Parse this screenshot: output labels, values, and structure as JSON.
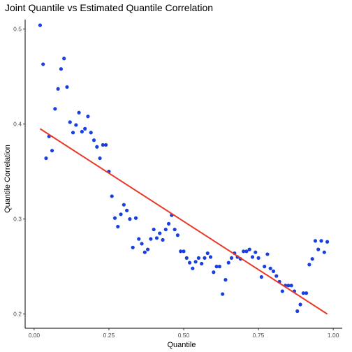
{
  "chart_data": {
    "type": "scatter",
    "title": "Joint Quantile vs Estimated Quantile Correlation",
    "xlabel": "Quantile",
    "ylabel": "Quantile Correlation",
    "xlim": [
      -0.03,
      1.03
    ],
    "ylim": [
      0.185,
      0.51
    ],
    "x_ticks": [
      0.0,
      0.25,
      0.5,
      0.75,
      1.0
    ],
    "x_tick_labels": [
      "0.00",
      "0.25",
      "0.50",
      "0.75",
      "1.00"
    ],
    "y_ticks": [
      0.2,
      0.3,
      0.4,
      0.5
    ],
    "y_tick_labels": [
      "0.2",
      "0.3",
      "0.4",
      "0.5"
    ],
    "grid": false,
    "legend": "none",
    "point_color": "#1a3fe0",
    "line_color": "#e8392a",
    "fit_line": {
      "x": [
        0.02,
        0.98
      ],
      "y": [
        0.395,
        0.2
      ]
    },
    "points": [
      [
        0.02,
        0.504
      ],
      [
        0.03,
        0.463
      ],
      [
        0.04,
        0.364
      ],
      [
        0.05,
        0.387
      ],
      [
        0.06,
        0.372
      ],
      [
        0.07,
        0.416
      ],
      [
        0.08,
        0.437
      ],
      [
        0.09,
        0.458
      ],
      [
        0.1,
        0.469
      ],
      [
        0.11,
        0.439
      ],
      [
        0.12,
        0.402
      ],
      [
        0.13,
        0.391
      ],
      [
        0.14,
        0.399
      ],
      [
        0.15,
        0.412
      ],
      [
        0.16,
        0.392
      ],
      [
        0.17,
        0.395
      ],
      [
        0.18,
        0.408
      ],
      [
        0.19,
        0.391
      ],
      [
        0.2,
        0.383
      ],
      [
        0.21,
        0.376
      ],
      [
        0.22,
        0.364
      ],
      [
        0.23,
        0.378
      ],
      [
        0.24,
        0.378
      ],
      [
        0.25,
        0.35
      ],
      [
        0.26,
        0.324
      ],
      [
        0.27,
        0.301
      ],
      [
        0.28,
        0.292
      ],
      [
        0.29,
        0.305
      ],
      [
        0.3,
        0.315
      ],
      [
        0.31,
        0.309
      ],
      [
        0.32,
        0.3
      ],
      [
        0.33,
        0.27
      ],
      [
        0.34,
        0.301
      ],
      [
        0.35,
        0.279
      ],
      [
        0.36,
        0.274
      ],
      [
        0.37,
        0.265
      ],
      [
        0.38,
        0.268
      ],
      [
        0.39,
        0.279
      ],
      [
        0.4,
        0.289
      ],
      [
        0.41,
        0.28
      ],
      [
        0.42,
        0.285
      ],
      [
        0.43,
        0.278
      ],
      [
        0.44,
        0.289
      ],
      [
        0.45,
        0.295
      ],
      [
        0.46,
        0.304
      ],
      [
        0.47,
        0.289
      ],
      [
        0.48,
        0.283
      ],
      [
        0.49,
        0.266
      ],
      [
        0.5,
        0.266
      ],
      [
        0.51,
        0.259
      ],
      [
        0.52,
        0.254
      ],
      [
        0.53,
        0.248
      ],
      [
        0.54,
        0.255
      ],
      [
        0.55,
        0.259
      ],
      [
        0.56,
        0.253
      ],
      [
        0.57,
        0.259
      ],
      [
        0.58,
        0.264
      ],
      [
        0.59,
        0.26
      ],
      [
        0.6,
        0.244
      ],
      [
        0.61,
        0.25
      ],
      [
        0.62,
        0.25
      ],
      [
        0.63,
        0.221
      ],
      [
        0.64,
        0.236
      ],
      [
        0.65,
        0.254
      ],
      [
        0.66,
        0.259
      ],
      [
        0.67,
        0.264
      ],
      [
        0.68,
        0.26
      ],
      [
        0.69,
        0.258
      ],
      [
        0.7,
        0.266
      ],
      [
        0.71,
        0.266
      ],
      [
        0.72,
        0.268
      ],
      [
        0.73,
        0.26
      ],
      [
        0.74,
        0.265
      ],
      [
        0.75,
        0.259
      ],
      [
        0.76,
        0.239
      ],
      [
        0.77,
        0.25
      ],
      [
        0.78,
        0.263
      ],
      [
        0.79,
        0.248
      ],
      [
        0.8,
        0.245
      ],
      [
        0.81,
        0.24
      ],
      [
        0.82,
        0.234
      ],
      [
        0.83,
        0.224
      ],
      [
        0.84,
        0.23
      ],
      [
        0.85,
        0.23
      ],
      [
        0.86,
        0.23
      ],
      [
        0.87,
        0.224
      ],
      [
        0.88,
        0.203
      ],
      [
        0.89,
        0.21
      ],
      [
        0.9,
        0.222
      ],
      [
        0.91,
        0.222
      ],
      [
        0.92,
        0.252
      ],
      [
        0.93,
        0.258
      ],
      [
        0.94,
        0.277
      ],
      [
        0.95,
        0.268
      ],
      [
        0.96,
        0.277
      ],
      [
        0.97,
        0.265
      ],
      [
        0.98,
        0.276
      ]
    ]
  }
}
